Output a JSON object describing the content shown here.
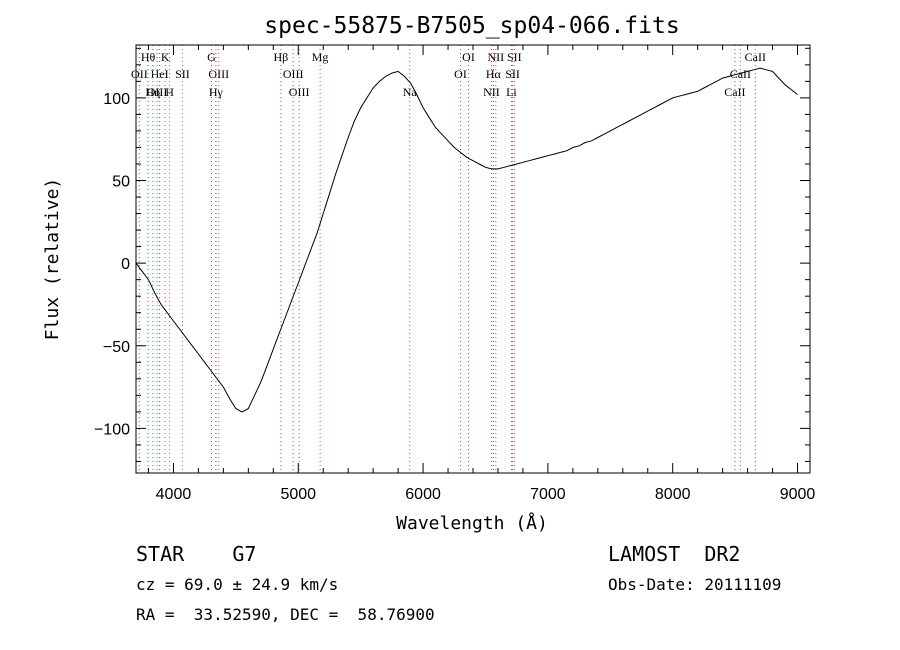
{
  "chart_data": {
    "type": "line",
    "title": "spec-55875-B7505_sp04-066.fits",
    "xlabel": "Wavelength (Å)",
    "ylabel": "Flux (relative)",
    "xlim": [
      3700,
      9100
    ],
    "ylim": [
      -127,
      132
    ],
    "xticks": [
      4000,
      5000,
      6000,
      7000,
      8000,
      9000
    ],
    "yticks": [
      -100,
      -50,
      0,
      50,
      100
    ],
    "grid": false,
    "series": [
      {
        "x": [
          3700,
          3750,
          3800,
          3850,
          3900,
          3950,
          4000,
          4050,
          4100,
          4150,
          4200,
          4250,
          4300,
          4350,
          4400,
          4450,
          4500,
          4550,
          4600,
          4650,
          4700,
          4750,
          4800,
          4850,
          4900,
          4950,
          5000,
          5050,
          5100,
          5150,
          5200,
          5250,
          5300,
          5350,
          5400,
          5450,
          5500,
          5550,
          5600,
          5650,
          5700,
          5750,
          5800,
          5850,
          5900,
          5950,
          6000,
          6050,
          6100,
          6150,
          6200,
          6250,
          6300,
          6350,
          6400,
          6450,
          6500,
          6550,
          6600,
          6650,
          6700,
          6750,
          6800,
          6850,
          6900,
          6950,
          7000,
          7050,
          7100,
          7150,
          7200,
          7250,
          7300,
          7350,
          7400,
          7450,
          7500,
          7550,
          7600,
          7650,
          7700,
          7750,
          7800,
          7850,
          7900,
          7950,
          8000,
          8050,
          8100,
          8150,
          8200,
          8250,
          8300,
          8350,
          8400,
          8450,
          8500,
          8550,
          8600,
          8650,
          8700,
          8750,
          8800,
          8850,
          8900,
          8950,
          9000
        ],
        "y": [
          0,
          -5,
          -10,
          -18,
          -25,
          -30,
          -35,
          -40,
          -45,
          -50,
          -55,
          -60,
          -65,
          -70,
          -75,
          -82,
          -88,
          -90,
          -88,
          -80,
          -72,
          -62,
          -52,
          -42,
          -32,
          -22,
          -12,
          -2,
          8,
          18,
          30,
          42,
          54,
          65,
          76,
          86,
          94,
          100,
          106,
          110,
          113,
          115,
          116,
          113,
          109,
          102,
          94,
          88,
          82,
          78,
          74,
          70,
          67,
          64,
          62,
          60,
          58,
          57,
          57,
          58,
          59,
          60,
          61,
          62,
          63,
          64,
          65,
          66,
          67,
          68,
          70,
          71,
          73,
          74,
          76,
          78,
          80,
          82,
          84,
          86,
          88,
          90,
          92,
          94,
          96,
          98,
          100,
          101,
          102,
          103,
          104,
          106,
          108,
          110,
          112,
          113,
          114,
          115,
          116,
          117,
          118,
          117,
          116,
          112,
          108,
          105,
          102
        ]
      }
    ],
    "lines": [
      {
        "name": "Hθ",
        "x": 3797,
        "row": 0
      },
      {
        "name": "K",
        "x": 3934,
        "row": 0
      },
      {
        "name": "G",
        "x": 4305,
        "row": 0
      },
      {
        "name": "Hβ",
        "x": 4861,
        "row": 0
      },
      {
        "name": "Mg",
        "x": 5175,
        "row": 0
      },
      {
        "name": "OI",
        "x": 6364,
        "row": 0
      },
      {
        "name": "NII",
        "x": 6583,
        "row": 0
      },
      {
        "name": "SII",
        "x": 6731,
        "row": 0
      },
      {
        "name": "CaII",
        "x": 8662,
        "row": 0
      },
      {
        "name": "OII",
        "x": 3727,
        "row": 1
      },
      {
        "name": "HeI",
        "x": 3889,
        "row": 1
      },
      {
        "name": "SII",
        "x": 4072,
        "row": 1
      },
      {
        "name": "OIII",
        "x": 4363,
        "row": 1
      },
      {
        "name": "OIII",
        "x": 4959,
        "row": 1
      },
      {
        "name": "OI",
        "x": 6300,
        "row": 1
      },
      {
        "name": "Hα",
        "x": 6563,
        "row": 1
      },
      {
        "name": "SII",
        "x": 6717,
        "row": 1
      },
      {
        "name": "CaII",
        "x": 8542,
        "row": 1
      },
      {
        "name": "OIII",
        "x": 3869,
        "row": 2
      },
      {
        "name": "Hη",
        "x": 3835,
        "row": 2
      },
      {
        "name": "H",
        "x": 3969,
        "row": 2
      },
      {
        "name": "Hγ",
        "x": 4340,
        "row": 2
      },
      {
        "name": "OIII",
        "x": 5007,
        "row": 2
      },
      {
        "name": "Na",
        "x": 5893,
        "row": 2
      },
      {
        "name": "NII",
        "x": 6548,
        "row": 2
      },
      {
        "name": "Li",
        "x": 6708,
        "row": 2
      },
      {
        "name": "CaII",
        "x": 8498,
        "row": 2
      }
    ]
  },
  "info": {
    "object": "STAR    G7",
    "survey": "LAMOST  DR2",
    "cz": "cz = 69.0 ± 24.9 km/s",
    "obs_date": "Obs-Date: 20111109",
    "radec": "RA =  33.52590, DEC =  58.76900"
  }
}
